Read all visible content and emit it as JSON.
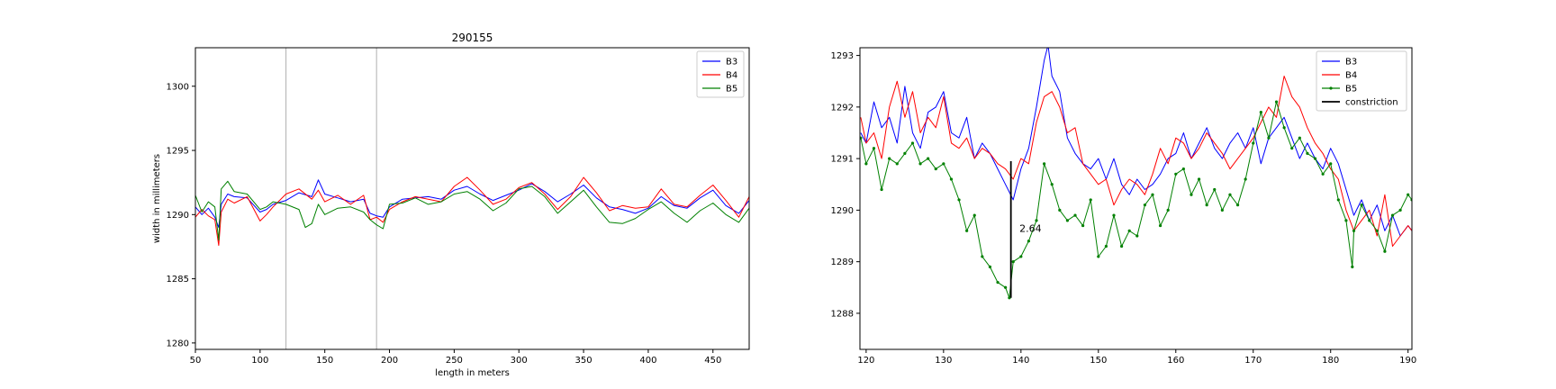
{
  "chart_data": [
    {
      "type": "line",
      "title": "290155",
      "xlabel": "length in meters",
      "ylabel": "width in millimeters",
      "xlim": [
        50,
        478
      ],
      "ylim": [
        1279.5,
        1303
      ],
      "xticks": [
        50,
        100,
        150,
        200,
        250,
        300,
        350,
        400,
        450
      ],
      "yticks": [
        1280,
        1285,
        1290,
        1295,
        1300
      ],
      "vlines": [
        120,
        190
      ],
      "legend_position": "upper right",
      "grid": false,
      "series": [
        {
          "name": "B3",
          "color": "#0000ff",
          "x": [
            50,
            55,
            60,
            65,
            68,
            70,
            75,
            80,
            90,
            100,
            105,
            110,
            120,
            130,
            140,
            145,
            150,
            160,
            170,
            180,
            185,
            190,
            195,
            200,
            210,
            220,
            230,
            240,
            250,
            260,
            270,
            280,
            290,
            300,
            310,
            320,
            330,
            340,
            350,
            360,
            370,
            380,
            390,
            400,
            410,
            420,
            430,
            440,
            450,
            460,
            470,
            478
          ],
          "y": [
            1290.6,
            1290.0,
            1290.5,
            1289.8,
            1289.0,
            1290.8,
            1291.6,
            1291.4,
            1291.3,
            1290.2,
            1290.4,
            1290.8,
            1291.1,
            1291.7,
            1291.4,
            1292.7,
            1291.6,
            1291.3,
            1291.0,
            1291.2,
            1290.1,
            1289.9,
            1289.8,
            1290.6,
            1291.2,
            1291.3,
            1291.4,
            1291.2,
            1291.9,
            1292.2,
            1291.6,
            1291.1,
            1291.5,
            1291.9,
            1292.4,
            1291.8,
            1291.0,
            1291.6,
            1292.3,
            1291.3,
            1290.6,
            1290.4,
            1290.1,
            1290.5,
            1291.4,
            1290.7,
            1290.5,
            1291.3,
            1291.9,
            1290.7,
            1290.1,
            1291.1
          ]
        },
        {
          "name": "B4",
          "color": "#ff0000",
          "x": [
            50,
            55,
            60,
            65,
            68,
            70,
            75,
            80,
            90,
            100,
            105,
            110,
            120,
            130,
            140,
            145,
            150,
            160,
            170,
            180,
            185,
            190,
            195,
            200,
            210,
            220,
            230,
            240,
            250,
            260,
            270,
            280,
            290,
            300,
            310,
            320,
            330,
            340,
            350,
            360,
            370,
            380,
            390,
            400,
            410,
            420,
            430,
            440,
            450,
            460,
            470,
            478
          ],
          "y": [
            1289.8,
            1290.4,
            1289.9,
            1289.6,
            1287.6,
            1290.2,
            1291.2,
            1290.9,
            1291.4,
            1289.5,
            1290.0,
            1290.6,
            1291.6,
            1292.0,
            1291.2,
            1291.9,
            1291.0,
            1291.5,
            1290.8,
            1291.5,
            1289.6,
            1289.8,
            1289.4,
            1290.4,
            1291.0,
            1291.4,
            1291.2,
            1291.0,
            1292.2,
            1292.9,
            1291.9,
            1290.8,
            1291.2,
            1292.1,
            1292.5,
            1291.6,
            1290.4,
            1291.4,
            1292.9,
            1291.7,
            1290.3,
            1290.7,
            1290.5,
            1290.6,
            1292.0,
            1290.8,
            1290.6,
            1291.5,
            1292.3,
            1291.1,
            1289.8,
            1291.4
          ]
        },
        {
          "name": "B5",
          "color": "#008000",
          "x": [
            50,
            55,
            60,
            65,
            68,
            70,
            75,
            80,
            90,
            100,
            105,
            110,
            120,
            130,
            135,
            140,
            145,
            150,
            160,
            170,
            180,
            185,
            190,
            195,
            200,
            210,
            220,
            230,
            240,
            250,
            260,
            270,
            280,
            290,
            300,
            310,
            320,
            330,
            340,
            350,
            360,
            370,
            380,
            390,
            400,
            410,
            420,
            430,
            440,
            450,
            460,
            470,
            478
          ],
          "y": [
            1291.5,
            1290.2,
            1291.0,
            1290.6,
            1288.0,
            1292.0,
            1292.6,
            1291.8,
            1291.6,
            1290.4,
            1290.6,
            1291.0,
            1290.8,
            1290.4,
            1289.0,
            1289.3,
            1290.8,
            1290.0,
            1290.5,
            1290.6,
            1290.2,
            1289.6,
            1289.2,
            1288.9,
            1290.8,
            1290.9,
            1291.3,
            1290.8,
            1291.0,
            1291.6,
            1291.8,
            1291.2,
            1290.3,
            1290.9,
            1292.0,
            1292.2,
            1291.4,
            1290.1,
            1291.0,
            1291.9,
            1290.6,
            1289.4,
            1289.3,
            1289.7,
            1290.4,
            1291.0,
            1290.1,
            1289.4,
            1290.3,
            1290.9,
            1290.0,
            1289.4,
            1290.5
          ]
        }
      ]
    },
    {
      "type": "line",
      "title": "",
      "xlabel": "",
      "ylabel": "",
      "xlim": [
        119.2,
        190.5
      ],
      "ylim": [
        1287.3,
        1293.15
      ],
      "xticks": [
        120,
        130,
        140,
        150,
        160,
        170,
        180,
        190
      ],
      "yticks": [
        1288,
        1289,
        1290,
        1291,
        1292,
        1293
      ],
      "legend_position": "upper right",
      "grid": false,
      "annotation": {
        "text": "2.64",
        "x": 139.8,
        "y": 1289.65
      },
      "constriction": {
        "x": 138.7,
        "y_low": 1288.3,
        "y_high": 1290.95
      },
      "series": [
        {
          "name": "B3",
          "color": "#0000ff",
          "marker": false,
          "x": [
            119.3,
            120,
            121,
            122,
            123,
            124,
            125,
            126,
            127,
            128,
            129,
            130,
            131,
            132,
            133,
            134,
            135,
            136,
            137,
            138,
            139,
            140,
            141,
            142,
            143,
            143.5,
            144,
            145,
            146,
            147,
            148,
            149,
            150,
            151,
            152,
            153,
            154,
            155,
            156,
            157,
            158,
            159,
            160,
            161,
            162,
            163,
            164,
            165,
            166,
            167,
            168,
            169,
            170,
            171,
            172,
            173,
            174,
            175,
            176,
            177,
            178,
            179,
            180,
            181,
            182,
            183,
            184,
            185,
            186,
            187,
            188,
            189,
            190,
            190.5
          ],
          "y": [
            1291.5,
            1291.3,
            1292.1,
            1291.6,
            1291.8,
            1291.3,
            1292.4,
            1291.5,
            1291.2,
            1291.9,
            1292.0,
            1292.3,
            1291.5,
            1291.4,
            1291.8,
            1291.0,
            1291.3,
            1291.1,
            1290.8,
            1290.5,
            1290.2,
            1290.8,
            1291.2,
            1292.0,
            1292.9,
            1293.2,
            1292.6,
            1292.3,
            1291.4,
            1291.1,
            1290.9,
            1290.8,
            1291.0,
            1290.6,
            1291.0,
            1290.5,
            1290.3,
            1290.6,
            1290.4,
            1290.5,
            1290.7,
            1291.0,
            1291.1,
            1291.5,
            1291.0,
            1291.3,
            1291.6,
            1291.2,
            1291.0,
            1291.3,
            1291.5,
            1291.2,
            1291.6,
            1290.9,
            1291.4,
            1291.6,
            1291.8,
            1291.4,
            1291.0,
            1291.3,
            1291.0,
            1290.8,
            1291.2,
            1290.9,
            1290.4,
            1289.9,
            1290.2,
            1289.8,
            1290.1,
            1289.6,
            1289.9,
            1289.5,
            1289.7,
            1289.6
          ]
        },
        {
          "name": "B4",
          "color": "#ff0000",
          "marker": false,
          "x": [
            119.3,
            120,
            121,
            122,
            123,
            124,
            125,
            126,
            127,
            128,
            129,
            130,
            131,
            132,
            133,
            134,
            135,
            136,
            137,
            138,
            139,
            140,
            141,
            142,
            143,
            144,
            145,
            146,
            147,
            148,
            149,
            150,
            151,
            152,
            153,
            154,
            155,
            156,
            157,
            158,
            159,
            160,
            161,
            162,
            163,
            164,
            165,
            166,
            167,
            168,
            169,
            170,
            171,
            172,
            173,
            174,
            175,
            176,
            177,
            178,
            179,
            180,
            181,
            182,
            183,
            184,
            185,
            186,
            187,
            188,
            189,
            190,
            190.5
          ],
          "y": [
            1291.8,
            1291.3,
            1291.5,
            1291.0,
            1292.0,
            1292.5,
            1291.8,
            1292.3,
            1291.5,
            1291.8,
            1291.6,
            1292.2,
            1291.3,
            1291.2,
            1291.4,
            1291.0,
            1291.2,
            1291.1,
            1290.9,
            1290.8,
            1290.6,
            1291.0,
            1290.9,
            1291.7,
            1292.2,
            1292.3,
            1292.0,
            1291.5,
            1291.6,
            1290.9,
            1290.7,
            1290.5,
            1290.6,
            1290.1,
            1290.4,
            1290.6,
            1290.5,
            1290.3,
            1290.7,
            1291.2,
            1290.9,
            1291.4,
            1291.3,
            1291.0,
            1291.2,
            1291.5,
            1291.3,
            1291.1,
            1290.8,
            1291.0,
            1291.2,
            1291.4,
            1291.7,
            1292.0,
            1291.8,
            1292.6,
            1292.2,
            1292.0,
            1291.6,
            1291.3,
            1291.1,
            1290.8,
            1290.6,
            1290.0,
            1289.6,
            1289.8,
            1290.0,
            1289.5,
            1290.3,
            1289.3,
            1289.5,
            1289.7,
            1289.6
          ]
        },
        {
          "name": "B5",
          "color": "#008000",
          "marker": true,
          "x": [
            119.3,
            120,
            121,
            122,
            123,
            124,
            125,
            126,
            127,
            128,
            129,
            130,
            131,
            132,
            133,
            134,
            135,
            136,
            137,
            138,
            138.5,
            139,
            140,
            141,
            142,
            143,
            144,
            145,
            146,
            147,
            148,
            149,
            150,
            151,
            152,
            153,
            154,
            155,
            156,
            157,
            158,
            159,
            160,
            161,
            162,
            163,
            164,
            165,
            166,
            167,
            168,
            169,
            170,
            171,
            172,
            173,
            174,
            175,
            176,
            177,
            178,
            179,
            180,
            181,
            182,
            182.8,
            183,
            184,
            185,
            186,
            187,
            188,
            189,
            190,
            190.5
          ],
          "y": [
            1291.4,
            1290.9,
            1291.2,
            1290.4,
            1291.0,
            1290.9,
            1291.1,
            1291.3,
            1290.9,
            1291.0,
            1290.8,
            1290.9,
            1290.6,
            1290.2,
            1289.6,
            1289.9,
            1289.1,
            1288.9,
            1288.6,
            1288.5,
            1288.3,
            1289.0,
            1289.1,
            1289.4,
            1289.8,
            1290.9,
            1290.5,
            1290.0,
            1289.8,
            1289.9,
            1289.7,
            1290.2,
            1289.1,
            1289.3,
            1289.9,
            1289.3,
            1289.6,
            1289.5,
            1290.1,
            1290.3,
            1289.7,
            1290.0,
            1290.7,
            1290.8,
            1290.3,
            1290.6,
            1290.1,
            1290.4,
            1290.0,
            1290.3,
            1290.1,
            1290.6,
            1291.3,
            1291.9,
            1291.4,
            1292.1,
            1291.6,
            1291.2,
            1291.4,
            1291.1,
            1291.0,
            1290.7,
            1290.9,
            1290.2,
            1289.8,
            1288.9,
            1289.6,
            1290.1,
            1289.8,
            1289.6,
            1289.2,
            1289.9,
            1290.0,
            1290.3,
            1290.2
          ]
        }
      ]
    }
  ]
}
